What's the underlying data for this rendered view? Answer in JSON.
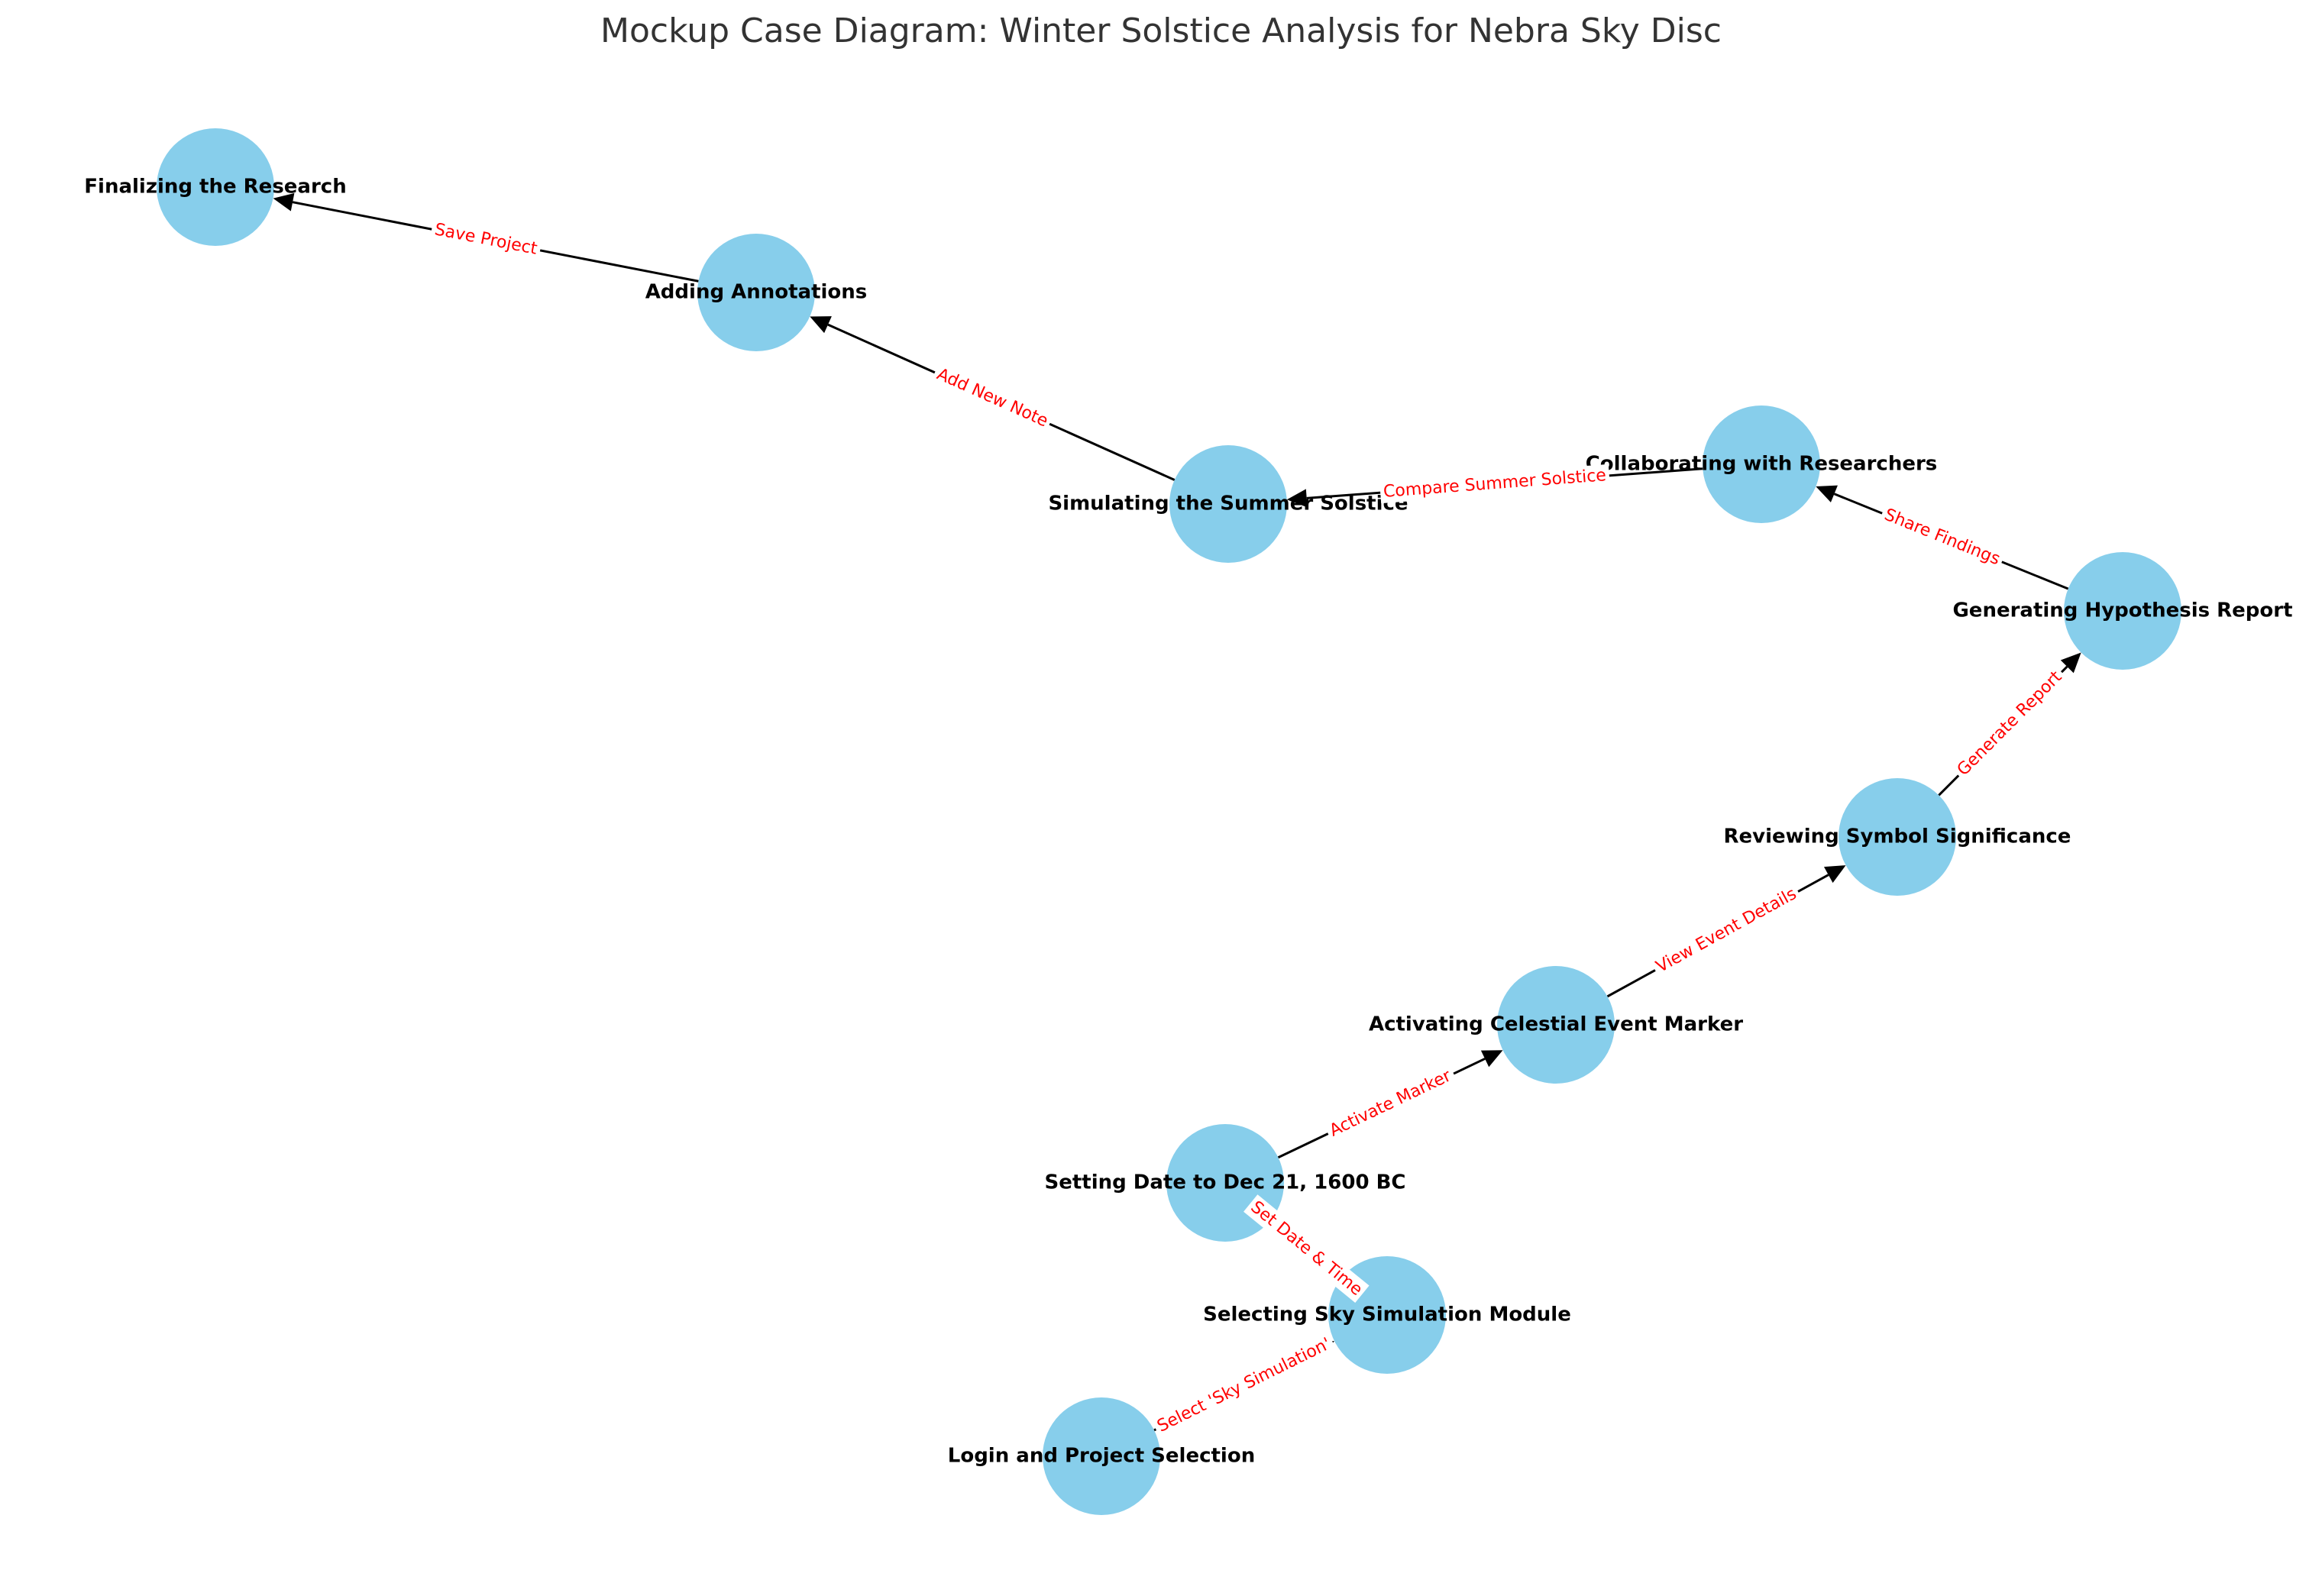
{
  "title": "Mockup Case Diagram: Winter Solstice Analysis for Nebra Sky Disc",
  "colors": {
    "node": "#87CEEB",
    "edge": "#000000",
    "edge_label": "#ff0000"
  },
  "nodes": [
    {
      "id": "login",
      "label": "Login and Project Selection"
    },
    {
      "id": "select",
      "label": "Selecting Sky Simulation Module"
    },
    {
      "id": "date",
      "label": "Setting Date to Dec 21, 1600 BC"
    },
    {
      "id": "marker",
      "label": "Activating Celestial Event Marker"
    },
    {
      "id": "symbol",
      "label": "Reviewing Symbol Significance"
    },
    {
      "id": "hypothesis",
      "label": "Generating Hypothesis Report"
    },
    {
      "id": "collab",
      "label": "Collaborating with Researchers"
    },
    {
      "id": "summer",
      "label": "Simulating the Summer Solstice"
    },
    {
      "id": "annot",
      "label": "Adding Annotations"
    },
    {
      "id": "final",
      "label": "Finalizing the Research"
    }
  ],
  "edges": [
    {
      "from": "login",
      "to": "select",
      "label": "Select 'Sky Simulation'"
    },
    {
      "from": "select",
      "to": "date",
      "label": "Set Date & Time"
    },
    {
      "from": "date",
      "to": "marker",
      "label": "Activate Marker"
    },
    {
      "from": "marker",
      "to": "symbol",
      "label": "View Event Details"
    },
    {
      "from": "symbol",
      "to": "hypothesis",
      "label": "Generate Report"
    },
    {
      "from": "hypothesis",
      "to": "collab",
      "label": "Share Findings"
    },
    {
      "from": "collab",
      "to": "summer",
      "label": "Compare Summer Solstice"
    },
    {
      "from": "summer",
      "to": "annot",
      "label": "Add New Note"
    },
    {
      "from": "annot",
      "to": "final",
      "label": "Save Project"
    }
  ]
}
